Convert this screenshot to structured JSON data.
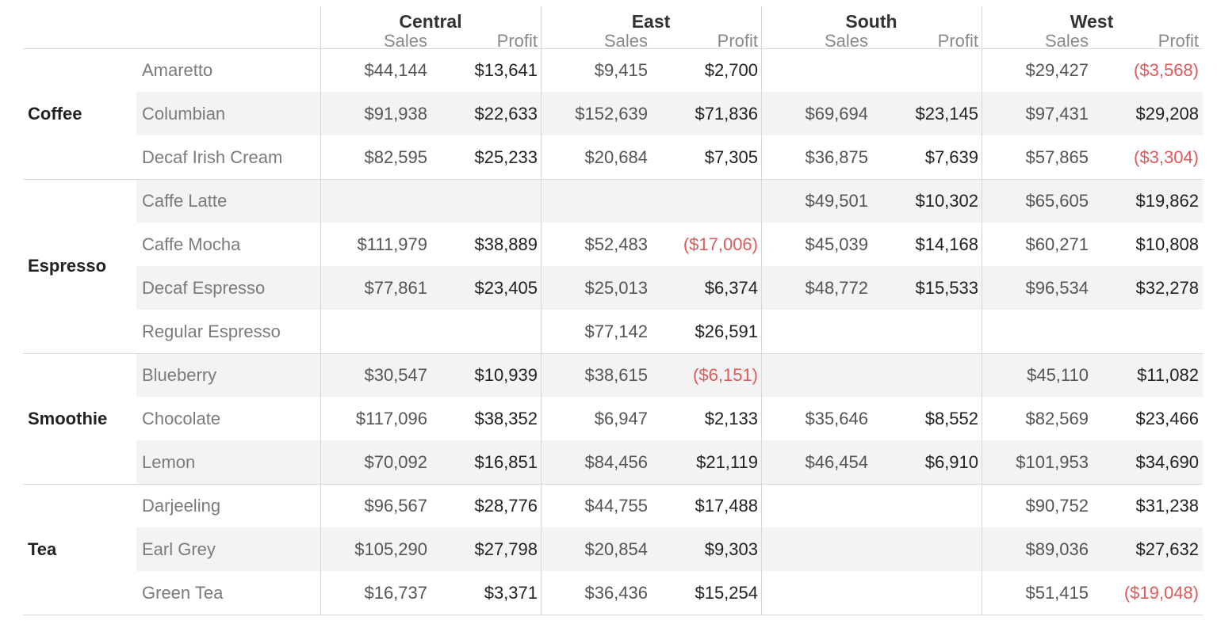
{
  "chart_data": {
    "type": "table",
    "regions": [
      "Central",
      "East",
      "South",
      "West"
    ],
    "measures": [
      "Sales",
      "Profit"
    ],
    "categories": [
      {
        "name": "Coffee",
        "products": [
          {
            "name": "Amaretto",
            "values": [
              [
                "$44,144",
                "$13,641"
              ],
              [
                "$9,415",
                "$2,700"
              ],
              [
                "",
                ""
              ],
              [
                "$29,427",
                "($3,568)"
              ]
            ]
          },
          {
            "name": "Columbian",
            "values": [
              [
                "$91,938",
                "$22,633"
              ],
              [
                "$152,639",
                "$71,836"
              ],
              [
                "$69,694",
                "$23,145"
              ],
              [
                "$97,431",
                "$29,208"
              ]
            ]
          },
          {
            "name": "Decaf Irish Cream",
            "values": [
              [
                "$82,595",
                "$25,233"
              ],
              [
                "$20,684",
                "$7,305"
              ],
              [
                "$36,875",
                "$7,639"
              ],
              [
                "$57,865",
                "($3,304)"
              ]
            ]
          }
        ]
      },
      {
        "name": "Espresso",
        "products": [
          {
            "name": "Caffe Latte",
            "values": [
              [
                "",
                ""
              ],
              [
                "",
                ""
              ],
              [
                "$49,501",
                "$10,302"
              ],
              [
                "$65,605",
                "$19,862"
              ]
            ]
          },
          {
            "name": "Caffe Mocha",
            "values": [
              [
                "$111,979",
                "$38,889"
              ],
              [
                "$52,483",
                "($17,006)"
              ],
              [
                "$45,039",
                "$14,168"
              ],
              [
                "$60,271",
                "$10,808"
              ]
            ]
          },
          {
            "name": "Decaf Espresso",
            "values": [
              [
                "$77,861",
                "$23,405"
              ],
              [
                "$25,013",
                "$6,374"
              ],
              [
                "$48,772",
                "$15,533"
              ],
              [
                "$96,534",
                "$32,278"
              ]
            ]
          },
          {
            "name": "Regular Espresso",
            "values": [
              [
                "",
                ""
              ],
              [
                "$77,142",
                "$26,591"
              ],
              [
                "",
                ""
              ],
              [
                "",
                ""
              ]
            ]
          }
        ]
      },
      {
        "name": "Smoothie",
        "products": [
          {
            "name": "Blueberry",
            "values": [
              [
                "$30,547",
                "$10,939"
              ],
              [
                "$38,615",
                "($6,151)"
              ],
              [
                "",
                ""
              ],
              [
                "$45,110",
                "$11,082"
              ]
            ]
          },
          {
            "name": "Chocolate",
            "values": [
              [
                "$117,096",
                "$38,352"
              ],
              [
                "$6,947",
                "$2,133"
              ],
              [
                "$35,646",
                "$8,552"
              ],
              [
                "$82,569",
                "$23,466"
              ]
            ]
          },
          {
            "name": "Lemon",
            "values": [
              [
                "$70,092",
                "$16,851"
              ],
              [
                "$84,456",
                "$21,119"
              ],
              [
                "$46,454",
                "$6,910"
              ],
              [
                "$101,953",
                "$34,690"
              ]
            ]
          }
        ]
      },
      {
        "name": "Tea",
        "products": [
          {
            "name": "Darjeeling",
            "values": [
              [
                "$96,567",
                "$28,776"
              ],
              [
                "$44,755",
                "$17,488"
              ],
              [
                "",
                ""
              ],
              [
                "$90,752",
                "$31,238"
              ]
            ]
          },
          {
            "name": "Earl Grey",
            "values": [
              [
                "$105,290",
                "$27,798"
              ],
              [
                "$20,854",
                "$9,303"
              ],
              [
                "",
                ""
              ],
              [
                "$89,036",
                "$27,632"
              ]
            ]
          },
          {
            "name": "Green Tea",
            "values": [
              [
                "$16,737",
                "$3,371"
              ],
              [
                "$36,436",
                "$15,254"
              ],
              [
                "",
                ""
              ],
              [
                "$51,415",
                "($19,048)"
              ]
            ]
          }
        ]
      }
    ],
    "colors": {
      "negative": "#e0595b",
      "band": "#f3f3f3"
    }
  }
}
